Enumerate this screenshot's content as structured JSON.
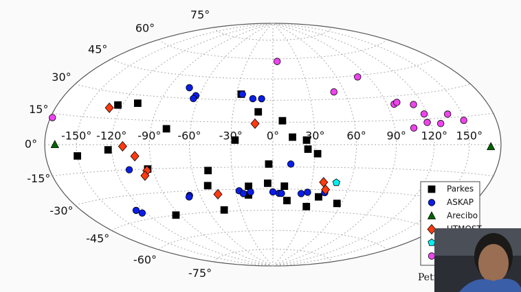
{
  "chart_data": {
    "type": "scatter",
    "projection": "hammer",
    "xlim": [
      -180,
      180
    ],
    "ylim": [
      -90,
      90
    ],
    "xticks": [
      {
        "value": -150,
        "label": "-150°"
      },
      {
        "value": -120,
        "label": "-120°"
      },
      {
        "value": -90,
        "label": "-90°"
      },
      {
        "value": -60,
        "label": "-60°"
      },
      {
        "value": -30,
        "label": "-30°"
      },
      {
        "value": 0,
        "label": "0°"
      },
      {
        "value": 30,
        "label": "30°"
      },
      {
        "value": 60,
        "label": "60°"
      },
      {
        "value": 90,
        "label": "90°"
      },
      {
        "value": 120,
        "label": "120°"
      },
      {
        "value": 150,
        "label": "150°"
      }
    ],
    "yticks": [
      {
        "value": -75,
        "label": "-75°"
      },
      {
        "value": -60,
        "label": "-60°"
      },
      {
        "value": -45,
        "label": "-45°"
      },
      {
        "value": -30,
        "label": "-30°"
      },
      {
        "value": -15,
        "label": "-15°"
      },
      {
        "value": 0,
        "label": "0°"
      },
      {
        "value": 15,
        "label": "15°"
      },
      {
        "value": 30,
        "label": "30°"
      },
      {
        "value": 45,
        "label": "45°"
      },
      {
        "value": 60,
        "label": "60°"
      },
      {
        "value": 75,
        "label": "75°"
      }
    ],
    "grid": true,
    "legend": "lower right",
    "series": [
      {
        "name": "Parkes",
        "color": "#000000",
        "marker": "square",
        "x": [
          -26,
          -124,
          -108,
          -11,
          7,
          -78,
          -27,
          14,
          24,
          25,
          32,
          -150,
          -123,
          -94,
          -3,
          -48,
          -51,
          -19,
          -4,
          9,
          -20,
          12,
          38,
          56,
          30,
          -45,
          -94
        ],
        "values": [
          34,
          23,
          25,
          22,
          16,
          10,
          3,
          5,
          3,
          -3,
          -6,
          -6,
          -3,
          -15,
          -13,
          -17,
          -27,
          -28,
          -26,
          -28,
          -34,
          -38,
          -35,
          -39,
          -42,
          -44,
          -45
        ]
      },
      {
        "name": "ASKAP",
        "color": "#0a1ee6",
        "marker": "circle",
        "x": [
          -72,
          -63,
          -64,
          -25,
          -16,
          -9,
          -109,
          13,
          -69,
          -70,
          -27,
          -24,
          -18,
          0,
          5,
          7,
          23,
          28,
          42,
          -127,
          -124
        ],
        "values": [
          37,
          32,
          30,
          34,
          31,
          31,
          -15,
          -13,
          -33,
          -34,
          -31,
          -33,
          -32,
          -32,
          -33,
          -33,
          -33,
          -32,
          -32,
          -39,
          -41
        ]
      },
      {
        "name": "Arecibo",
        "color": "#006400",
        "marker": "triangle",
        "x": [
          -170,
          170
        ],
        "values": [
          0,
          -1
        ]
      },
      {
        "name": "UTMOST",
        "color": "#ff3a10",
        "marker": "diamond",
        "x": [
          -130,
          -13,
          -111,
          -102,
          -95,
          -98,
          -45,
          39,
          42
        ],
        "values": [
          21,
          14,
          -1,
          -7,
          -16,
          -19,
          -33,
          -25,
          -30
        ]
      },
      {
        "color": "#00f0f0",
        "marker": "pentagon",
        "x": [
          49
        ],
        "values": [
          -25
        ]
      },
      {
        "color": "#ee44ee",
        "marker": "circle",
        "x": [
          5,
          80,
          51,
          96,
          99,
          112,
          117,
          117,
          105,
          128,
          137,
          149,
          -178
        ],
        "values": [
          58,
          44,
          35,
          25,
          26,
          24,
          18,
          13,
          10,
          12,
          17,
          13,
          13
        ]
      }
    ],
    "caption": "Petr"
  }
}
